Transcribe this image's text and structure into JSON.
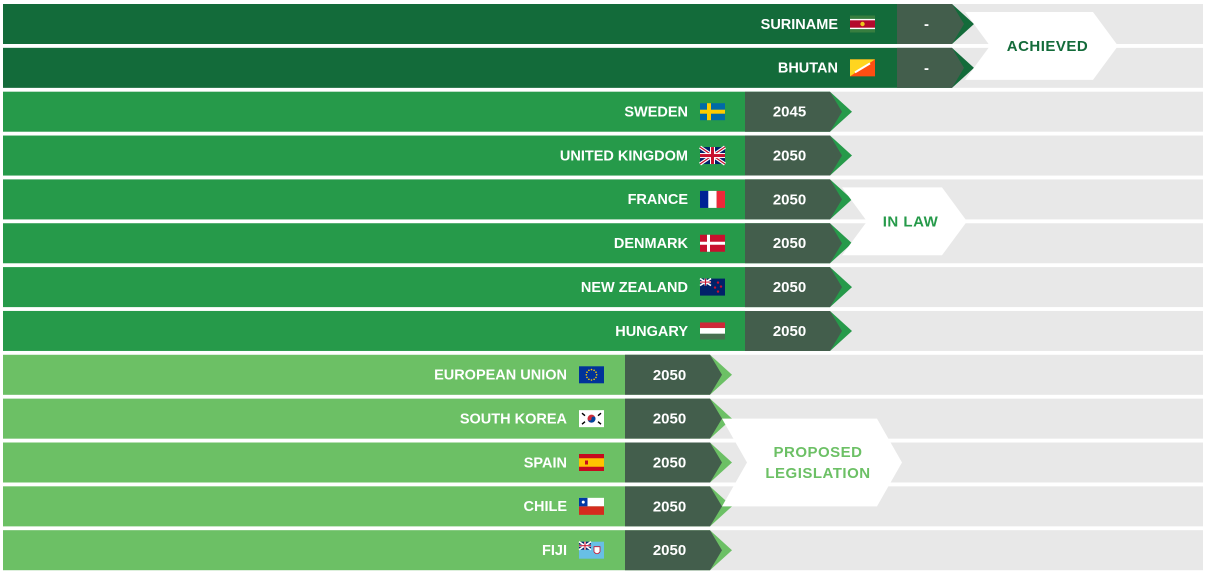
{
  "chart_data": {
    "type": "bar",
    "colors": {
      "achieved": "#136b3a",
      "in_law": "#269a4a",
      "proposed": "#6cc065",
      "year_tab": "#435e4c",
      "track": "#e8e8e8"
    },
    "groups": [
      {
        "status": "ACHIEVED",
        "status_lines": [
          "ACHIEVED"
        ],
        "color_key": "achieved",
        "rows": [
          {
            "country": "SURINAME",
            "year": "-",
            "flag": "suriname-flag"
          },
          {
            "country": "BHUTAN",
            "year": "-",
            "flag": "bhutan-flag"
          }
        ]
      },
      {
        "status": "IN LAW",
        "status_lines": [
          "IN LAW"
        ],
        "color_key": "in_law",
        "rows": [
          {
            "country": "SWEDEN",
            "year": "2045",
            "flag": "sweden-flag"
          },
          {
            "country": "UNITED KINGDOM",
            "year": "2050",
            "flag": "united-kingdom-flag"
          },
          {
            "country": "FRANCE",
            "year": "2050",
            "flag": "france-flag"
          },
          {
            "country": "DENMARK",
            "year": "2050",
            "flag": "denmark-flag"
          },
          {
            "country": "NEW ZEALAND",
            "year": "2050",
            "flag": "new-zealand-flag"
          },
          {
            "country": "HUNGARY",
            "year": "2050",
            "flag": "hungary-flag"
          }
        ]
      },
      {
        "status": "PROPOSED LEGISLATION",
        "status_lines": [
          "PROPOSED",
          "LEGISLATION"
        ],
        "color_key": "proposed",
        "rows": [
          {
            "country": "EUROPEAN UNION",
            "year": "2050",
            "flag": "european-union-flag"
          },
          {
            "country": "SOUTH KOREA",
            "year": "2050",
            "flag": "south-korea-flag"
          },
          {
            "country": "SPAIN",
            "year": "2050",
            "flag": "spain-flag"
          },
          {
            "country": "CHILE",
            "year": "2050",
            "flag": "chile-flag"
          },
          {
            "country": "FIJI",
            "year": "2050",
            "flag": "fiji-flag"
          }
        ]
      }
    ]
  }
}
